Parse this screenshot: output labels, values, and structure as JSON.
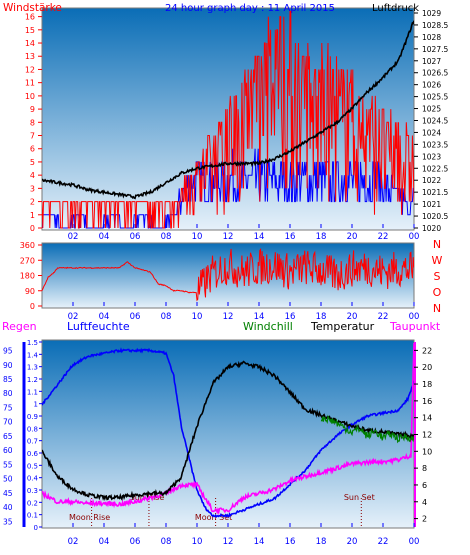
{
  "header": {
    "title": "24 hour graph day : 11 April 2015",
    "left_label": "Windstärke",
    "right_label": "Luftdruck"
  },
  "colors": {
    "wind": "#ff0000",
    "gust": "#0000ff",
    "pressure": "#000000",
    "direction": "#ff0000",
    "humidity": "#0000ff",
    "temperature": "#000000",
    "windchill": "#008000",
    "dewpoint": "#ff00ff",
    "rain_axis": "#0000ff",
    "grid_tick": "#0000ff",
    "bg_top": "#0a6db6",
    "bg_bottom": "#e6f1fa"
  },
  "chart_data": [
    {
      "type": "line",
      "name": "wind-pressure",
      "x_ticks": [
        "02",
        "04",
        "06",
        "08",
        "10",
        "12",
        "14",
        "16",
        "18",
        "20",
        "22",
        "00"
      ],
      "left_axis": {
        "label": "Windstärke",
        "ticks": [
          0,
          1,
          2,
          3,
          4,
          5,
          6,
          7,
          8,
          9,
          10,
          11,
          12,
          13,
          14,
          15,
          16
        ],
        "ylim": [
          0,
          16.5
        ]
      },
      "right_axis": {
        "label": "Luftdruck",
        "ticks": [
          "1020",
          "1020.5",
          "1021",
          "1021.5",
          "1022",
          "1022.5",
          "1023",
          "1023.5",
          "1024",
          "1024.5",
          "1025",
          "1025.5",
          "1026",
          "1026.5",
          "1027",
          "1027.5",
          "1028",
          "1028.5",
          "1029"
        ],
        "ylim": [
          1020,
          1029
        ]
      },
      "series": [
        {
          "key": "pressure",
          "x": [
            0,
            1,
            2,
            3,
            4,
            5,
            6,
            7,
            8,
            9,
            10,
            11,
            12,
            13,
            14,
            15,
            16,
            17,
            18,
            19,
            20,
            21,
            22,
            23,
            24
          ],
          "values": [
            1022,
            1021.9,
            1021.8,
            1021.6,
            1021.5,
            1021.4,
            1021.3,
            1021.5,
            1021.9,
            1022.3,
            1022.5,
            1022.6,
            1022.7,
            1022.7,
            1022.7,
            1022.9,
            1023.2,
            1023.6,
            1024,
            1024.4,
            1025,
            1025.7,
            1026.3,
            1027,
            1028.7
          ]
        },
        {
          "key": "wind",
          "x": [
            0.5,
            1.5,
            2.5,
            3.5,
            4.5,
            5.5,
            6.5,
            7.5,
            8.5,
            9.5,
            10.5,
            11.5,
            12.5,
            13.5,
            14.5,
            15.5,
            16.5,
            17.5,
            18.5,
            19.5,
            20.5,
            21.5,
            22.5,
            23.5
          ],
          "values": [
            2,
            2,
            2,
            2,
            2,
            2,
            2,
            2,
            2,
            4,
            6,
            8,
            10,
            12,
            14,
            16,
            14,
            12,
            12,
            12,
            10,
            9,
            8,
            7
          ]
        },
        {
          "key": "gust",
          "x": [
            0.5,
            1.5,
            2.5,
            3.5,
            4.5,
            5.5,
            6.5,
            7.5,
            8.5,
            9.5,
            10.5,
            11.5,
            12.5,
            13.5,
            14.5,
            15.5,
            16.5,
            17.5,
            18.5,
            19.5,
            20.5,
            21.5,
            22.5,
            23.5
          ],
          "values": [
            1,
            0,
            1,
            0,
            1,
            0,
            1,
            0,
            1,
            4,
            4,
            4,
            4,
            4,
            4,
            4,
            4,
            4,
            4,
            4,
            4,
            4,
            3,
            2
          ]
        }
      ]
    },
    {
      "type": "line",
      "name": "wind-direction",
      "x_ticks": [
        "02",
        "04",
        "06",
        "08",
        "10",
        "12",
        "14",
        "16",
        "18",
        "20",
        "22",
        "00"
      ],
      "left_axis": {
        "ticks": [
          0,
          90,
          180,
          270,
          360
        ],
        "ylim": [
          0,
          360
        ]
      },
      "right_axis": {
        "ticks": [
          "N",
          "W",
          "S",
          "O",
          "N"
        ]
      },
      "series": [
        {
          "key": "direction",
          "x": [
            0,
            0.4,
            0.8,
            1,
            2,
            3,
            4,
            5,
            5.5,
            6,
            7,
            7.5,
            8,
            8.5,
            9,
            9.5,
            10,
            11,
            12,
            13,
            14,
            15,
            16,
            17,
            18,
            19,
            20,
            21,
            22,
            23,
            24
          ],
          "values": [
            90,
            170,
            200,
            225,
            225,
            225,
            225,
            225,
            260,
            225,
            200,
            130,
            120,
            90,
            90,
            80,
            80,
            190,
            240,
            200,
            230,
            240,
            200,
            230,
            210,
            180,
            220,
            230,
            200,
            220,
            210
          ]
        }
      ]
    },
    {
      "type": "line",
      "name": "humidity-temperature",
      "x_ticks": [
        "02",
        "04",
        "06",
        "08",
        "10",
        "12",
        "14",
        "16",
        "18",
        "20",
        "22",
        "00"
      ],
      "rain_axis": {
        "label": "Regen",
        "ticks": [
          "0",
          "0.1",
          "0.2",
          "0.3",
          "0.4",
          "0.5",
          "0.6",
          "0.7",
          "0.8",
          "0.9",
          "1",
          "1.1",
          "1.2",
          "1.3",
          "1.4",
          "1.5"
        ],
        "ylim": [
          0,
          1.5
        ]
      },
      "humidity_axis": {
        "label": "Luftfeuchte",
        "ticks": [
          "35",
          "40",
          "45",
          "50",
          "55",
          "60",
          "65",
          "70",
          "75",
          "80",
          "85",
          "90",
          "95"
        ],
        "ylim": [
          33,
          98
        ]
      },
      "temperature_axis": {
        "label": "Temperatur",
        "ticks": [
          "2",
          "4",
          "6",
          "8",
          "10",
          "12",
          "14",
          "16",
          "18",
          "20",
          "22"
        ],
        "ylim": [
          1,
          23
        ]
      },
      "labels": {
        "windchill": "Windchill",
        "dewpoint": "Taupunkt"
      },
      "events": [
        {
          "label": "Moon Rise",
          "x": 3.2
        },
        {
          "label": "Sun Rise",
          "x": 6.9
        },
        {
          "label": "Moon Set",
          "x": 11.2
        },
        {
          "label": "Sun Set",
          "x": 20.6
        }
      ],
      "series": [
        {
          "key": "humidity",
          "x": [
            0,
            1,
            2,
            3,
            4,
            5,
            6,
            7,
            8,
            8.5,
            9,
            9.5,
            10,
            10.5,
            11,
            12,
            13,
            14,
            15,
            16,
            17,
            18,
            19,
            20,
            21,
            22,
            23,
            23.6,
            24
          ],
          "values": [
            76,
            83,
            90,
            93,
            94,
            95,
            95,
            95,
            94,
            86,
            68,
            57,
            46,
            40,
            37,
            37,
            39,
            41,
            43,
            48,
            53,
            60,
            65,
            69,
            72,
            73,
            74,
            78,
            84
          ]
        },
        {
          "key": "temperature",
          "x": [
            0,
            1,
            2,
            3,
            4,
            5,
            6,
            7,
            8,
            9,
            10,
            11,
            12,
            13,
            14,
            15,
            16,
            17,
            18,
            19,
            20,
            21,
            22,
            23,
            24
          ],
          "values": [
            10,
            7,
            5.5,
            4.8,
            4.5,
            4.5,
            4.8,
            5,
            5,
            7,
            13,
            18,
            20,
            20.5,
            20,
            19,
            17,
            15,
            14.3,
            13.6,
            13,
            12.5,
            12.3,
            12,
            11.8
          ]
        },
        {
          "key": "windchill",
          "x": [
            18,
            18.5,
            19,
            19.5,
            20,
            20.5,
            21,
            21.5,
            22,
            22.5,
            23,
            23.5,
            24
          ],
          "values": [
            14,
            13.8,
            13.4,
            12.8,
            12.3,
            12.7,
            11.8,
            12.4,
            11.6,
            12.1,
            11.5,
            11.8,
            11.4
          ]
        },
        {
          "key": "dewpoint",
          "x": [
            0,
            1,
            2,
            3,
            4,
            5,
            6,
            7,
            8,
            9,
            10,
            11,
            12,
            13,
            14,
            15,
            16,
            17,
            18,
            19,
            20,
            21,
            22,
            23,
            23.8,
            24
          ],
          "values": [
            5,
            4,
            4,
            3.8,
            3.8,
            3.7,
            4,
            4.5,
            5,
            6,
            6,
            3,
            3,
            4.5,
            5,
            5.5,
            6.5,
            7,
            7.5,
            8,
            8.5,
            8.7,
            8.8,
            9,
            9.5,
            23
          ]
        }
      ]
    }
  ]
}
